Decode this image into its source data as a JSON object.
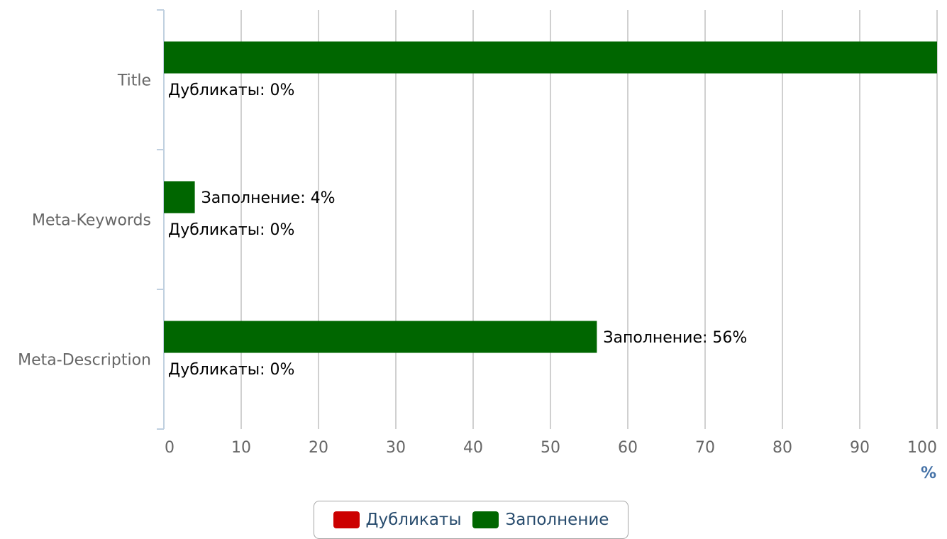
{
  "chart_data": {
    "type": "bar",
    "orientation": "horizontal",
    "categories": [
      "Title",
      "Meta-Keywords",
      "Meta-Description"
    ],
    "series": [
      {
        "name": "Дубликаты",
        "values": [
          0,
          0,
          0
        ],
        "color": "#cc0000",
        "label_prefix": "Дубликаты: "
      },
      {
        "name": "Заполнение",
        "values": [
          100,
          4,
          56
        ],
        "color": "#006600",
        "label_prefix": "Заполнение: "
      }
    ],
    "data_labels": [
      [
        "Дубликаты: 0%",
        "Дубликаты: 0%",
        "Дубликаты: 0%"
      ],
      [
        "",
        "Заполнение: 4%",
        "Заполнение: 56%"
      ]
    ],
    "xlabel": "%",
    "xlim": [
      0,
      100
    ],
    "xticks": [
      0,
      10,
      20,
      30,
      40,
      50,
      60,
      70,
      80,
      90,
      100
    ],
    "xtick_labels": [
      "0",
      "10",
      "20",
      "30",
      "40",
      "50",
      "60",
      "70",
      "80",
      "90",
      "100"
    ],
    "grid": true,
    "legend": "bottom-center"
  },
  "legend": {
    "items": [
      {
        "label": "Дубликаты",
        "color": "#cc0000"
      },
      {
        "label": "Заполнение",
        "color": "#006600"
      }
    ]
  }
}
